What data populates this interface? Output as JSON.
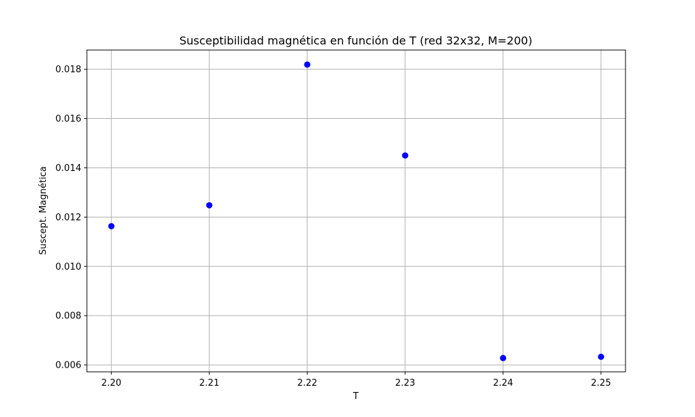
{
  "chart_data": {
    "type": "scatter",
    "title": "Susceptibilidad magnética en función de T (red 32x32, M=200)",
    "xlabel": "T",
    "ylabel": "Suscept. Magnética",
    "x": [
      2.2,
      2.21,
      2.22,
      2.23,
      2.24,
      2.25
    ],
    "y": [
      0.01163,
      0.01248,
      0.01819,
      0.0145,
      0.00628,
      0.00633
    ],
    "xlim": [
      2.1975,
      2.2525
    ],
    "ylim": [
      0.00572,
      0.01878
    ],
    "xticks": [
      2.2,
      2.21,
      2.22,
      2.23,
      2.24,
      2.25
    ],
    "xtick_labels": [
      "2.20",
      "2.21",
      "2.22",
      "2.23",
      "2.24",
      "2.25"
    ],
    "yticks": [
      0.006,
      0.008,
      0.01,
      0.012,
      0.014,
      0.016,
      0.018
    ],
    "ytick_labels": [
      "0.006",
      "0.008",
      "0.010",
      "0.012",
      "0.014",
      "0.016",
      "0.018"
    ],
    "grid": true,
    "marker_color": "#0000ff",
    "grid_color": "#b0b0b0"
  }
}
